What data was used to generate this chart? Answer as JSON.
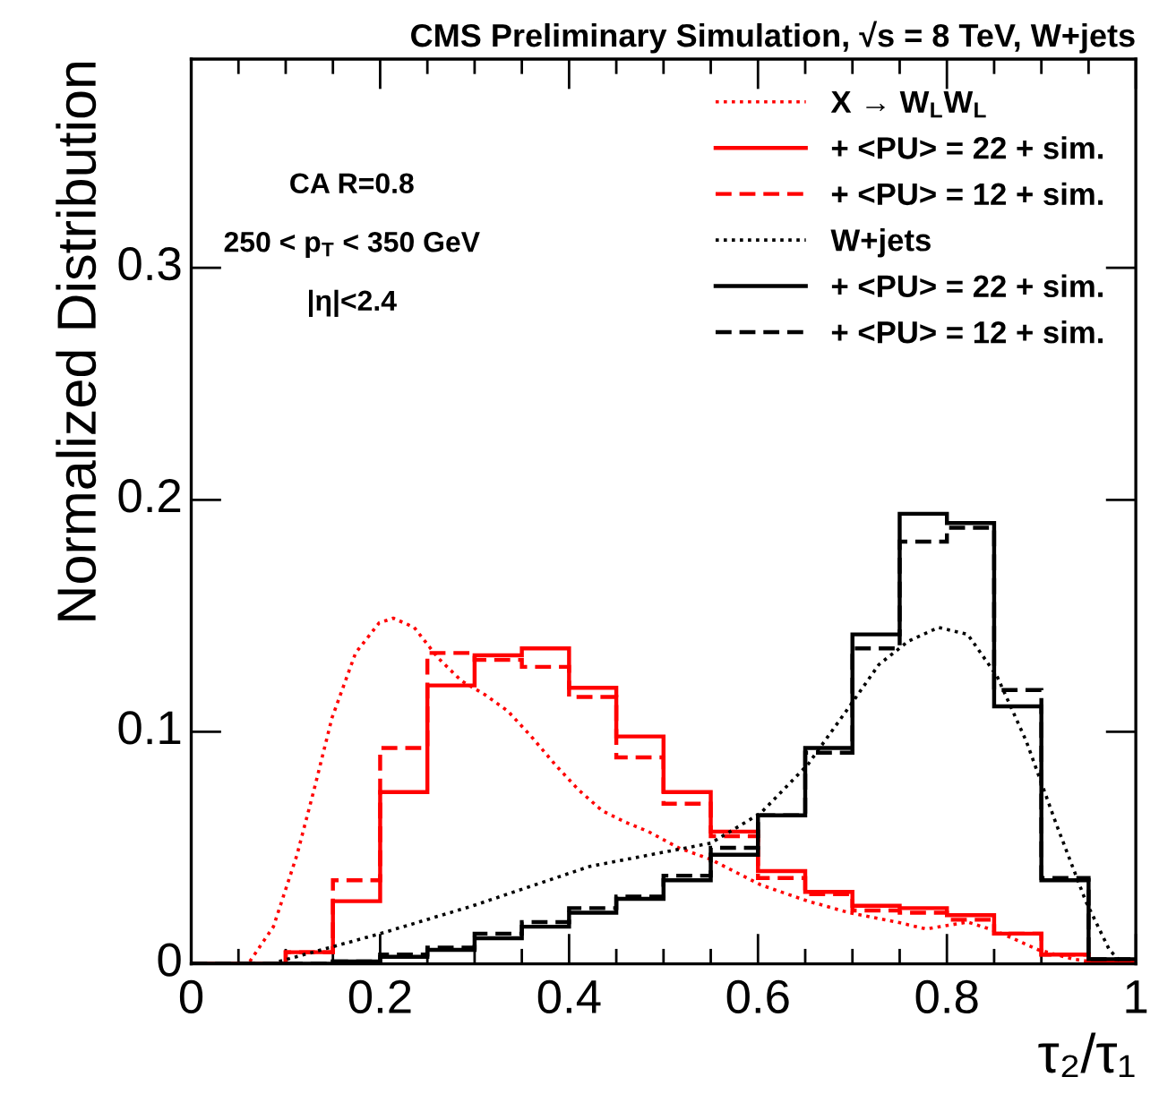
{
  "chart_data": {
    "type": "step",
    "title": "CMS Preliminary Simulation, √s = 8 TeV, W+jets",
    "xlabel": "τ₂/τ₁",
    "ylabel": "Normalized Distribution",
    "annotations": [
      "CA R=0.8",
      "250 < p$_{T}$ < 350 GeV",
      "|η|<2.4"
    ],
    "series": [
      {
        "name": "X → W$_{L}$W$_{L}$",
        "type": "line",
        "color": "#ff0000",
        "line_style": "dotted",
        "x": [
          0.062,
          0.087,
          0.112,
          0.13,
          0.149,
          0.174,
          0.199,
          0.214,
          0.236,
          0.261,
          0.286,
          0.311,
          0.335,
          0.36,
          0.385,
          0.41,
          0.435,
          0.46,
          0.484,
          0.516,
          0.55,
          0.603,
          0.653,
          0.697,
          0.747,
          0.778,
          0.822,
          0.853,
          0.897,
          0.934,
          0.959
        ],
        "values": [
          0.001,
          0.016,
          0.047,
          0.075,
          0.106,
          0.134,
          0.147,
          0.149,
          0.145,
          0.132,
          0.122,
          0.116,
          0.109,
          0.098,
          0.086,
          0.075,
          0.066,
          0.061,
          0.057,
          0.05,
          0.045,
          0.034,
          0.027,
          0.022,
          0.018,
          0.015,
          0.018,
          0.014,
          0.006,
          0.002,
          0.0005
        ]
      },
      {
        "name": "+ <PU> = 22 + sim.",
        "color": "#ff0000",
        "line_style": "solid",
        "x": [
          0,
          0.05,
          0.1,
          0.15,
          0.2,
          0.25,
          0.3,
          0.35,
          0.4,
          0.45,
          0.5,
          0.55,
          0.6,
          0.65,
          0.7,
          0.75,
          0.8,
          0.85,
          0.9,
          0.95,
          1
        ],
        "values": [
          0,
          0,
          0.005,
          0.027,
          0.074,
          0.12,
          0.133,
          0.136,
          0.119,
          0.098,
          0.074,
          0.057,
          0.04,
          0.031,
          0.025,
          0.024,
          0.021,
          0.013,
          0.004,
          0.001,
          0.001
        ]
      },
      {
        "name": "+ <PU> = 12 + sim.",
        "color": "#ff0000",
        "line_style": "dashed",
        "x": [
          0,
          0.05,
          0.1,
          0.15,
          0.2,
          0.25,
          0.3,
          0.35,
          0.4,
          0.45,
          0.5,
          0.55,
          0.6,
          0.65,
          0.7,
          0.75,
          0.8,
          0.85,
          0.9,
          0.95,
          1
        ],
        "values": [
          0,
          0,
          0.005,
          0.036,
          0.093,
          0.134,
          0.131,
          0.128,
          0.115,
          0.089,
          0.069,
          0.055,
          0.037,
          0.03,
          0.023,
          0.022,
          0.019,
          0.013,
          0.004,
          0.001,
          0.001
        ]
      },
      {
        "name": "W+jets",
        "type": "line",
        "color": "#000000",
        "line_style": "dotted",
        "x": [
          0.093,
          0.2,
          0.298,
          0.422,
          0.55,
          0.603,
          0.653,
          0.697,
          0.728,
          0.759,
          0.791,
          0.822,
          0.853,
          0.884,
          0.916,
          0.947,
          0.972,
          0.984
        ],
        "values": [
          0.001,
          0.013,
          0.025,
          0.042,
          0.052,
          0.065,
          0.086,
          0.111,
          0.129,
          0.139,
          0.145,
          0.142,
          0.124,
          0.096,
          0.06,
          0.027,
          0.006,
          0.001
        ]
      },
      {
        "name": "+ <PU> = 22 + sim.",
        "color": "#000000",
        "line_style": "solid",
        "x": [
          0,
          0.05,
          0.1,
          0.15,
          0.2,
          0.25,
          0.3,
          0.35,
          0.4,
          0.45,
          0.5,
          0.55,
          0.6,
          0.65,
          0.7,
          0.75,
          0.8,
          0.85,
          0.9,
          0.95,
          1
        ],
        "values": [
          0,
          0,
          0,
          0.001,
          0.003,
          0.006,
          0.011,
          0.016,
          0.022,
          0.028,
          0.036,
          0.047,
          0.064,
          0.093,
          0.142,
          0.194,
          0.19,
          0.111,
          0.036,
          0.002,
          0.002
        ]
      },
      {
        "name": "+ <PU> = 12 + sim.",
        "color": "#000000",
        "line_style": "dashed",
        "x": [
          0,
          0.05,
          0.1,
          0.15,
          0.2,
          0.25,
          0.3,
          0.35,
          0.4,
          0.45,
          0.5,
          0.55,
          0.6,
          0.65,
          0.7,
          0.75,
          0.8,
          0.85,
          0.9,
          0.95,
          1
        ],
        "values": [
          0,
          0,
          0,
          0.001,
          0.004,
          0.007,
          0.013,
          0.018,
          0.024,
          0.029,
          0.038,
          0.05,
          0.064,
          0.091,
          0.136,
          0.182,
          0.188,
          0.118,
          0.037,
          0.002,
          0.002
        ]
      }
    ],
    "xlim": [
      0,
      1
    ],
    "ylim": [
      0,
      0.39
    ],
    "xticks": [
      0,
      0.2,
      0.4,
      0.6,
      0.8,
      1
    ],
    "yticks": [
      0,
      0.1,
      0.2,
      0.3
    ],
    "legend": "top right"
  }
}
